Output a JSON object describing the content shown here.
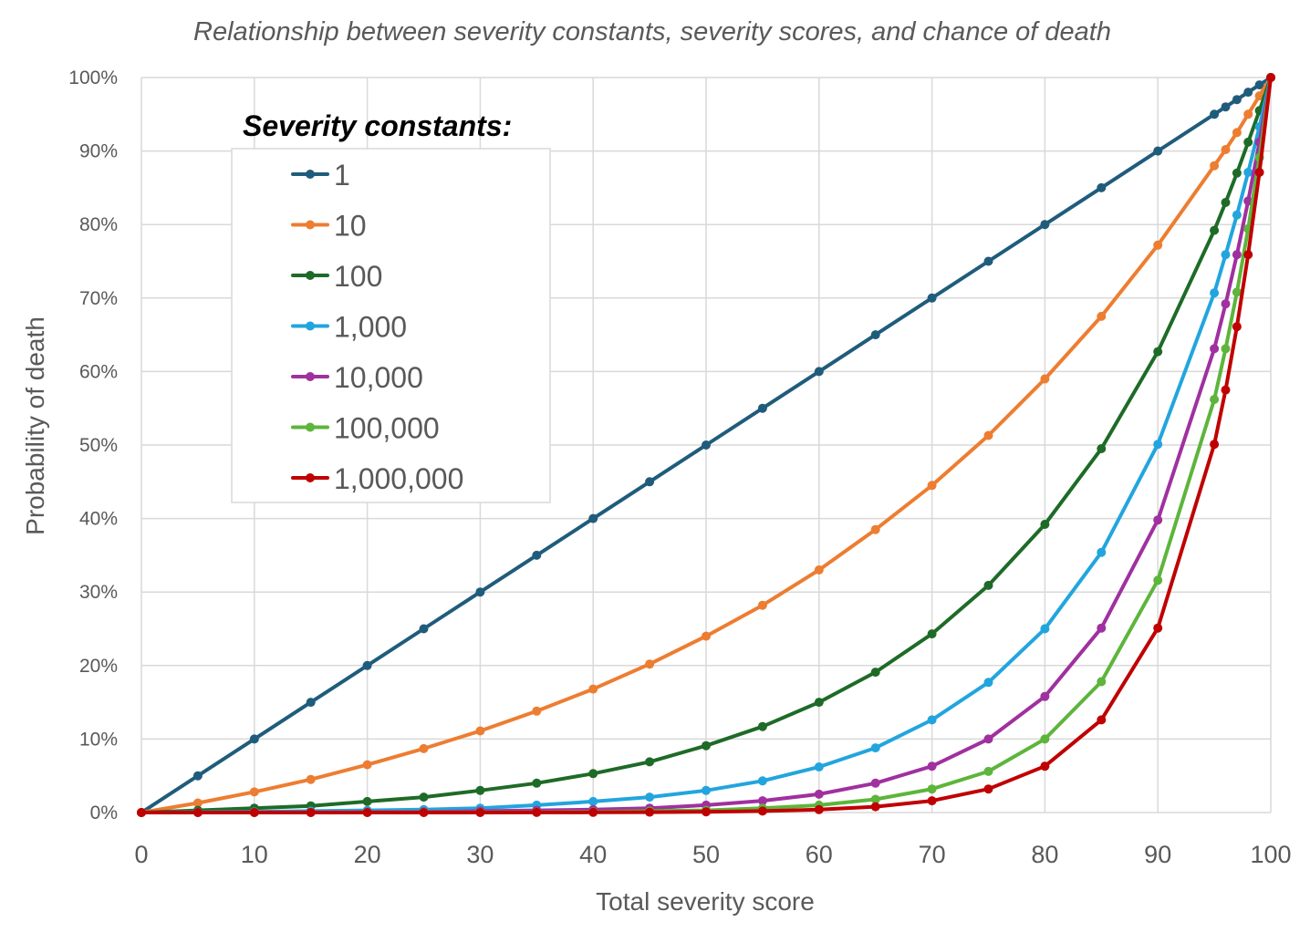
{
  "chart_data": {
    "type": "line",
    "title": "Relationship between severity constants, severity scores, and chance of death",
    "xlabel": "Total severity score",
    "ylabel": "Probability of death",
    "xlim": [
      0,
      100
    ],
    "ylim": [
      0,
      100
    ],
    "grid": true,
    "x_ticks": [
      "0",
      "10",
      "20",
      "30",
      "40",
      "50",
      "60",
      "70",
      "80",
      "90",
      "100"
    ],
    "y_ticks": [
      "0%",
      "10%",
      "20%",
      "30%",
      "40%",
      "50%",
      "60%",
      "70%",
      "80%",
      "90%",
      "100%"
    ],
    "legend": {
      "title": "Severity constants:",
      "placement": "top-left"
    },
    "x": [
      0,
      5,
      10,
      15,
      20,
      25,
      30,
      35,
      40,
      45,
      50,
      55,
      60,
      65,
      70,
      75,
      80,
      85,
      90,
      95,
      96,
      97,
      98,
      99,
      100
    ],
    "series": [
      {
        "name": "1",
        "color": "#1f5c7c",
        "values": [
          0,
          5,
          10,
          15,
          20,
          25,
          30,
          35,
          40,
          45,
          50,
          55,
          60,
          65,
          70,
          75,
          80,
          85,
          90,
          95,
          96,
          97,
          98,
          99,
          100
        ]
      },
      {
        "name": "10",
        "color": "#ed7d31",
        "values": [
          0,
          1.3,
          2.8,
          4.5,
          6.5,
          8.7,
          11.1,
          13.8,
          16.8,
          20.2,
          24.0,
          28.2,
          33.0,
          38.5,
          44.5,
          51.3,
          59.0,
          67.5,
          77.2,
          88.0,
          90.2,
          92.5,
          95.0,
          97.5,
          100
        ]
      },
      {
        "name": "100",
        "color": "#1e6b27",
        "values": [
          0,
          0.3,
          0.6,
          0.9,
          1.5,
          2.1,
          3.0,
          4.0,
          5.3,
          6.9,
          9.1,
          11.7,
          15.0,
          19.1,
          24.3,
          30.9,
          39.2,
          49.5,
          62.7,
          79.2,
          83.0,
          87.0,
          91.2,
          95.5,
          100
        ]
      },
      {
        "name": "1,000",
        "color": "#22a5de",
        "values": [
          0,
          0.05,
          0.1,
          0.2,
          0.3,
          0.4,
          0.6,
          1.0,
          1.5,
          2.1,
          3.0,
          4.3,
          6.2,
          8.8,
          12.6,
          17.7,
          25.0,
          35.4,
          50.1,
          70.7,
          75.9,
          81.3,
          87.1,
          93.3,
          100
        ]
      },
      {
        "name": "10,000",
        "color": "#a0309f",
        "values": [
          0,
          0,
          0.02,
          0.04,
          0.06,
          0.1,
          0.2,
          0.3,
          0.4,
          0.6,
          1.0,
          1.6,
          2.5,
          4.0,
          6.3,
          10.0,
          15.8,
          25.1,
          39.8,
          63.1,
          69.2,
          75.9,
          83.2,
          91.2,
          100
        ]
      },
      {
        "name": "100,000",
        "color": "#5db53b",
        "values": [
          0,
          0,
          0,
          0,
          0.01,
          0.02,
          0.03,
          0.05,
          0.1,
          0.2,
          0.3,
          0.6,
          1.0,
          1.8,
          3.2,
          5.6,
          10.0,
          17.8,
          31.6,
          56.2,
          63.1,
          70.8,
          79.4,
          89.1,
          100
        ]
      },
      {
        "name": "1,000,000",
        "color": "#c00000",
        "values": [
          0,
          0,
          0,
          0,
          0,
          0,
          0,
          0.01,
          0.02,
          0.05,
          0.1,
          0.2,
          0.4,
          0.8,
          1.6,
          3.2,
          6.3,
          12.6,
          25.1,
          50.1,
          57.5,
          66.1,
          75.9,
          87.1,
          100
        ]
      }
    ]
  }
}
